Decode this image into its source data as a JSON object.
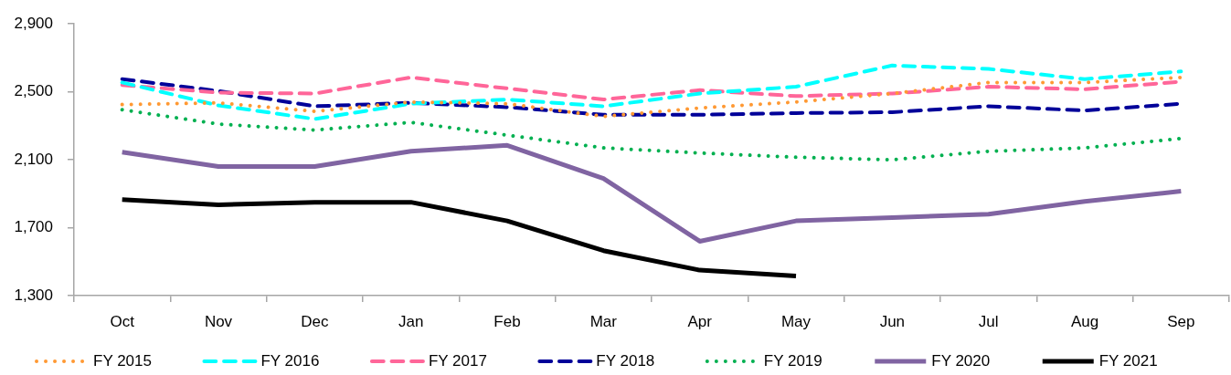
{
  "chart_data": {
    "type": "line",
    "categories": [
      "Oct",
      "Nov",
      "Dec",
      "Jan",
      "Feb",
      "Mar",
      "Apr",
      "May",
      "Jun",
      "Jul",
      "Aug",
      "Sep"
    ],
    "series": [
      {
        "name": "FY 2015",
        "color": "#ff9933",
        "line_style": "dotted",
        "values": [
          2425,
          2435,
          2385,
          2440,
          2430,
          2355,
          2405,
          2440,
          2490,
          2555,
          2555,
          2585
        ]
      },
      {
        "name": "FY 2016",
        "color": "#00ffff",
        "line_style": "dashed",
        "values": [
          2555,
          2420,
          2340,
          2430,
          2455,
          2415,
          2490,
          2530,
          2655,
          2635,
          2575,
          2620
        ]
      },
      {
        "name": "FY 2017",
        "color": "#ff6699",
        "line_style": "dashed",
        "values": [
          2540,
          2495,
          2490,
          2585,
          2520,
          2455,
          2510,
          2475,
          2490,
          2530,
          2515,
          2560
        ]
      },
      {
        "name": "FY 2018",
        "color": "#000099",
        "line_style": "dashed",
        "values": [
          2575,
          2505,
          2415,
          2435,
          2410,
          2365,
          2365,
          2375,
          2380,
          2415,
          2390,
          2430
        ]
      },
      {
        "name": "FY 2019",
        "color": "#00b050",
        "line_style": "dotted",
        "values": [
          2395,
          2310,
          2275,
          2320,
          2245,
          2170,
          2140,
          2115,
          2100,
          2150,
          2170,
          2225
        ]
      },
      {
        "name": "FY 2020",
        "color": "#8064a2",
        "line_style": "solid",
        "values": [
          2145,
          2060,
          2060,
          2150,
          2185,
          1990,
          1620,
          1740,
          1760,
          1780,
          1855,
          1915
        ]
      },
      {
        "name": "FY 2021",
        "color": "#000000",
        "line_style": "solid",
        "values": [
          1865,
          1835,
          1850,
          1850,
          1740,
          1565,
          1450,
          1415,
          null,
          null,
          null,
          null
        ]
      }
    ],
    "ylim": [
      1300,
      2900
    ],
    "yticks": [
      {
        "value": 1300,
        "label": "1,300"
      },
      {
        "value": 1700,
        "label": "1,700"
      },
      {
        "value": 2100,
        "label": "2,100"
      },
      {
        "value": 2500,
        "label": "2,500"
      },
      {
        "value": 2900,
        "label": "2,900"
      }
    ],
    "grid": false,
    "legend": "bottom",
    "marker": "none"
  }
}
